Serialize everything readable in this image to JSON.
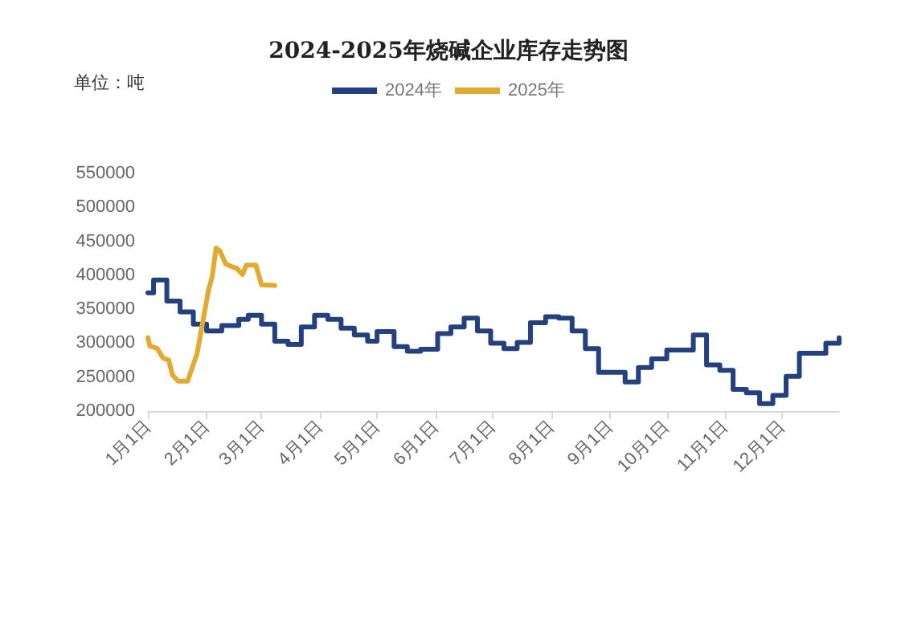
{
  "chart_data": {
    "type": "line",
    "title": "2024-2025年烧碱企业库存走势图",
    "ylabel": "单位：吨",
    "ylim": [
      200000,
      550000
    ],
    "yticks": [
      200000,
      250000,
      300000,
      350000,
      400000,
      450000,
      500000,
      550000
    ],
    "xlim": [
      "--01-01",
      "--12-31"
    ],
    "xticks": [
      {
        "value": "--01-01",
        "label": "1月1日"
      },
      {
        "value": "--02-01",
        "label": "2月1日"
      },
      {
        "value": "--03-01",
        "label": "3月1日"
      },
      {
        "value": "--04-01",
        "label": "4月1日"
      },
      {
        "value": "--05-01",
        "label": "5月1日"
      },
      {
        "value": "--06-01",
        "label": "6月1日"
      },
      {
        "value": "--07-01",
        "label": "7月1日"
      },
      {
        "value": "--08-01",
        "label": "8月1日"
      },
      {
        "value": "--09-01",
        "label": "9月1日"
      },
      {
        "value": "--10-01",
        "label": "10月1日"
      },
      {
        "value": "--11-01",
        "label": "11月1日"
      },
      {
        "value": "--12-01",
        "label": "12月1日"
      }
    ],
    "grid": false,
    "legend": "top",
    "marker": "none",
    "line_style": "solid",
    "series": [
      {
        "name": "2024年",
        "type": "step",
        "color": "#23407f",
        "x": [
          "--01-01",
          "--01-04",
          "--01-11",
          "--01-18",
          "--01-25",
          "--02-01",
          "--02-09",
          "--02-18",
          "--02-23",
          "--03-01",
          "--03-08",
          "--03-15",
          "--03-22",
          "--03-29",
          "--04-05",
          "--04-12",
          "--04-19",
          "--04-26",
          "--05-01",
          "--05-10",
          "--05-17",
          "--05-24",
          "--06-02",
          "--06-09",
          "--06-16",
          "--06-23",
          "--06-30",
          "--07-07",
          "--07-14",
          "--07-21",
          "--07-29",
          "--08-05",
          "--08-12",
          "--08-19",
          "--08-26",
          "--09-09",
          "--09-16",
          "--09-23",
          "--10-01",
          "--10-15",
          "--10-22",
          "--10-29",
          "--11-05",
          "--11-12",
          "--11-19",
          "--11-26",
          "--12-03",
          "--12-10",
          "--12-24",
          "--12-31"
        ],
        "values": [
          374000,
          393000,
          362000,
          346000,
          328000,
          318000,
          326000,
          335000,
          341000,
          328000,
          303000,
          298000,
          324000,
          341000,
          335000,
          322000,
          312000,
          303000,
          317000,
          295000,
          288000,
          291000,
          314000,
          324000,
          337000,
          318000,
          300000,
          292000,
          301000,
          330000,
          339000,
          337000,
          318000,
          292000,
          257000,
          243000,
          264000,
          277000,
          290000,
          312000,
          268000,
          260000,
          232000,
          227000,
          211000,
          223000,
          251000,
          285000,
          300000,
          308000
        ]
      },
      {
        "name": "2025年",
        "color": "#e2aa2f",
        "x": [
          "--01-01",
          "--01-02",
          "--01-06",
          "--01-09",
          "--01-12",
          "--01-14",
          "--01-17",
          "--01-22",
          "--01-27",
          "--02-02",
          "--02-04",
          "--02-06",
          "--02-08",
          "--02-11",
          "--02-14",
          "--02-17",
          "--02-20",
          "--02-22",
          "--02-27",
          "--03-01",
          "--03-08"
        ],
        "values": [
          308000,
          296000,
          292000,
          278000,
          275000,
          253000,
          244000,
          244000,
          285000,
          378000,
          399000,
          440000,
          436000,
          417000,
          413000,
          410000,
          401000,
          415000,
          415000,
          386000,
          385000
        ]
      }
    ]
  }
}
